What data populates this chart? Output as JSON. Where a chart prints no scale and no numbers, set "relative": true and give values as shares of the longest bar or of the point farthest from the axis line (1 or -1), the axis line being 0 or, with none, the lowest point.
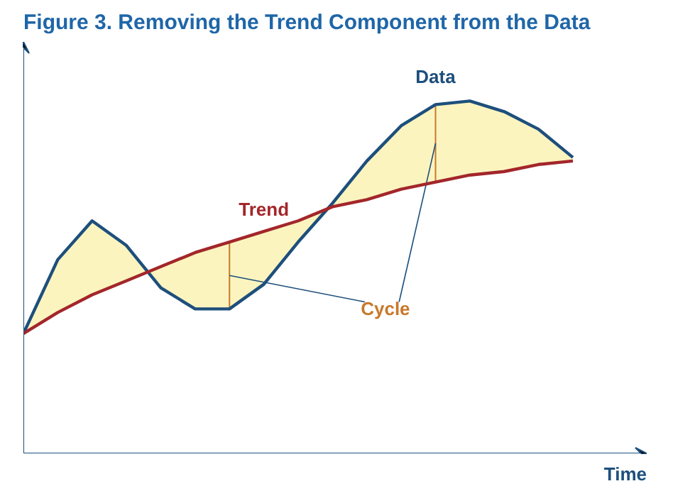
{
  "chart_data": {
    "type": "line",
    "title": "Figure 3. Removing the Trend Component from the Data",
    "xlabel": "Time",
    "relative": true,
    "categories": [
      null,
      null,
      null,
      null,
      null,
      null,
      null,
      null,
      null,
      null,
      null,
      null,
      null,
      null,
      null,
      null,
      null
    ],
    "series": [
      {
        "name": "Data",
        "color": "#1d4f7c",
        "values": [
          0.34,
          0.55,
          0.66,
          0.59,
          0.47,
          0.41,
          0.41,
          0.48,
          0.6,
          0.71,
          0.83,
          0.93,
          0.99,
          1,
          0.97,
          0.92,
          0.84
        ],
        "lower": [
          0.34,
          0.4,
          0.45,
          0.49,
          0.53,
          0.57,
          0.6,
          0.63,
          0.66,
          0.7,
          0.72,
          0.75,
          0.77,
          0.79,
          0.8,
          0.82,
          0.83
        ],
        "upper": [
          0.34,
          0.55,
          0.66,
          0.59,
          0.47,
          0.41,
          0.41,
          0.48,
          0.6,
          0.71,
          0.83,
          0.93,
          0.99,
          1,
          0.97,
          0.92,
          0.84
        ]
      },
      {
        "name": "Trend",
        "color": "#a3262a",
        "values": [
          0.34,
          0.4,
          0.45,
          0.49,
          0.53,
          0.57,
          0.6,
          0.63,
          0.66,
          0.7,
          0.72,
          0.75,
          0.77,
          0.79,
          0.8,
          0.82,
          0.83
        ]
      }
    ],
    "annotations": [
      "Cycle"
    ]
  }
}
